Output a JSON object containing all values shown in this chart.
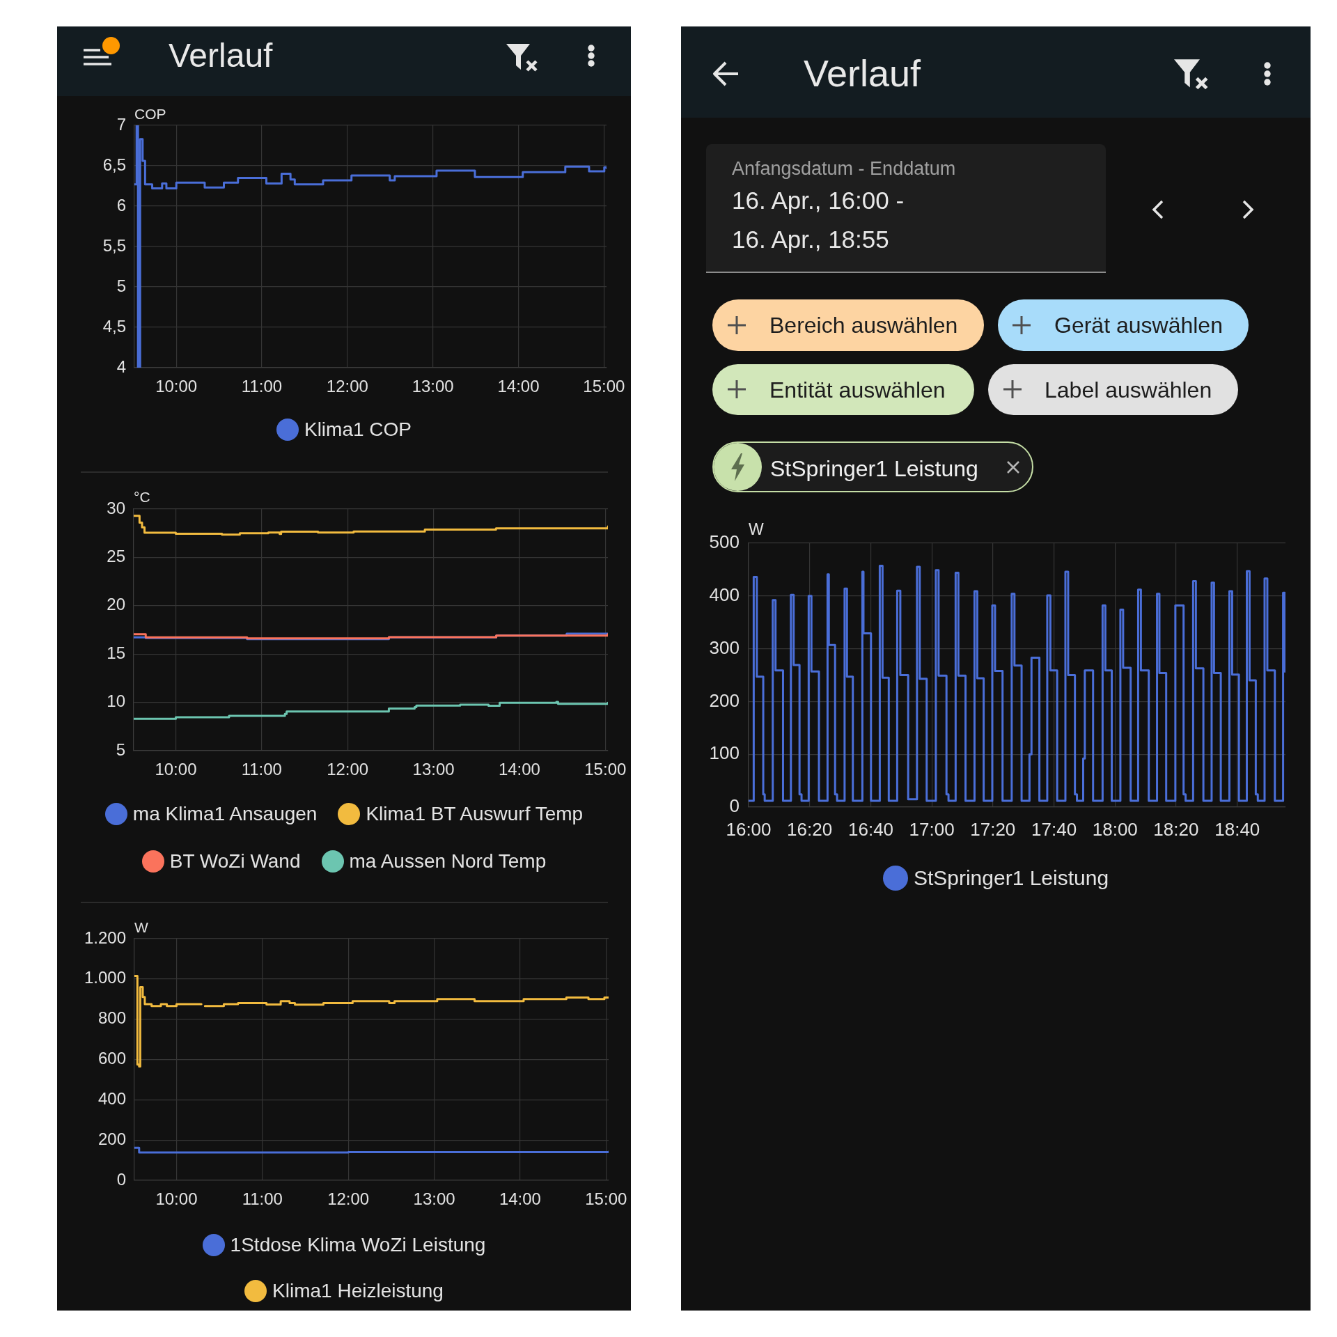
{
  "chart_data": [
    {
      "type": "other",
      "title": "Verlauf"
    },
    {
      "type": "step",
      "ylabel": "COP",
      "xlim": [
        9.51,
        15.03
      ],
      "xticks": [
        {
          "value": 10,
          "label": "10:00"
        },
        {
          "value": 11,
          "label": "11:00"
        },
        {
          "value": 12,
          "label": "12:00"
        },
        {
          "value": 13,
          "label": "13:00"
        },
        {
          "value": 14,
          "label": "14:00"
        },
        {
          "value": 15,
          "label": "15:00"
        }
      ],
      "ylim": [
        4,
        7
      ],
      "yticks": [
        4,
        {
          "value": 4.5,
          "label": "4,5"
        },
        5,
        {
          "value": 5.5,
          "label": "5,5"
        },
        6,
        {
          "value": 6.5,
          "label": "6,5"
        },
        7
      ],
      "grid": true,
      "legend": "bottom",
      "series": [
        {
          "name": "Klima1 COP",
          "color": "#4a6ed8",
          "x": [
            9.51,
            9.536,
            9.552,
            9.577,
            9.606,
            9.635,
            9.718,
            9.834,
            9.884,
            10.0,
            10.332,
            10.556,
            10.721,
            11.053,
            11.231,
            11.335,
            11.385,
            11.716,
            12.048,
            12.496,
            12.554,
            13.043,
            13.491,
            14.051,
            14.548,
            14.826,
            15.004,
            15.03
          ],
          "values": [
            6.27,
            7.0,
            4.0,
            6.83,
            6.56,
            6.27,
            6.22,
            6.28,
            6.22,
            6.29,
            6.23,
            6.29,
            6.35,
            6.28,
            6.4,
            6.33,
            6.27,
            6.32,
            6.38,
            6.32,
            6.37,
            6.44,
            6.36,
            6.42,
            6.49,
            6.43,
            6.48,
            6.47
          ]
        }
      ]
    },
    {
      "type": "step",
      "ylabel": "°C",
      "xlim": [
        9.51,
        15.03
      ],
      "xticks": [
        {
          "value": 10,
          "label": "10:00"
        },
        {
          "value": 11,
          "label": "11:00"
        },
        {
          "value": 12,
          "label": "12:00"
        },
        {
          "value": 13,
          "label": "13:00"
        },
        {
          "value": 14,
          "label": "14:00"
        },
        {
          "value": 15,
          "label": "15:00"
        }
      ],
      "ylim": [
        5,
        30
      ],
      "yticks": [
        5,
        10,
        15,
        20,
        25,
        30
      ],
      "grid": true,
      "legend": "bottom",
      "series": [
        {
          "name": "ma Klima1 Ansaugen",
          "color": "#4a6ed8",
          "x": [
            9.51,
            9.65,
            10.83,
            12.48,
            13.73,
            14.55,
            15.03
          ],
          "values": [
            16.73,
            16.65,
            16.55,
            16.72,
            16.9,
            17.1,
            17.0
          ]
        },
        {
          "name": "Klima1 BT Auswurf Temp",
          "color": "#f2bb3f",
          "x": [
            9.51,
            9.578,
            9.607,
            9.636,
            10.0,
            10.538,
            10.745,
            11.077,
            11.209,
            11.226,
            11.656,
            12.07,
            12.899,
            13.727,
            15.03
          ],
          "values": [
            29.3,
            28.6,
            28.1,
            27.55,
            27.45,
            27.35,
            27.5,
            27.57,
            27.43,
            27.65,
            27.57,
            27.68,
            27.87,
            28.0,
            28.2
          ]
        },
        {
          "name": "BT WoZi Wand",
          "color": "#fb735c",
          "x": [
            9.51,
            9.65,
            10.83,
            12.48,
            13.73,
            15.03
          ],
          "values": [
            17.05,
            16.72,
            16.62,
            16.75,
            16.9,
            17.05
          ]
        },
        {
          "name": "ma Aussen Nord Temp",
          "color": "#6cc5b0",
          "x": [
            9.51,
            10.0,
            10.62,
            11.27,
            11.29,
            11.66,
            12.48,
            12.78,
            12.8,
            13.31,
            13.64,
            13.77,
            14.43,
            14.45,
            15.03
          ],
          "values": [
            8.3,
            8.45,
            8.6,
            8.8,
            9.05,
            9.05,
            9.35,
            9.5,
            9.67,
            9.75,
            9.65,
            9.95,
            10.05,
            9.85,
            9.95
          ]
        }
      ]
    },
    {
      "type": "step",
      "ylabel": "W",
      "xlim": [
        9.51,
        15.03
      ],
      "xticks": [
        {
          "value": 10,
          "label": "10:00"
        },
        {
          "value": 11,
          "label": "11:00"
        },
        {
          "value": 12,
          "label": "12:00"
        },
        {
          "value": 13,
          "label": "13:00"
        },
        {
          "value": 14,
          "label": "14:00"
        },
        {
          "value": 15,
          "label": "15:00"
        }
      ],
      "ylim": [
        0,
        1200
      ],
      "yticks": [
        0,
        200,
        400,
        600,
        800,
        {
          "value": 1000,
          "label": "1.000"
        },
        {
          "value": 1200,
          "label": "1.200"
        }
      ],
      "grid": true,
      "legend": "bottom",
      "series": [
        {
          "name": "1Stdose Klima WoZi Leistung",
          "color": "#4a6ed8",
          "x": [
            9.51,
            9.565,
            12.0,
            15.03
          ],
          "values": [
            162,
            138,
            140,
            142
          ]
        },
        {
          "name": "Klima1 Heizleistung",
          "color": "#f2bb3f",
          "x": [
            9.51,
            9.545,
            9.565,
            9.578,
            9.607,
            9.631,
            9.71,
            9.818,
            9.888,
            10.0,
            10.29,
            10.3,
            10.331,
            10.551,
            10.716,
            11.048,
            11.213,
            11.317,
            11.379,
            11.71,
            12.05,
            12.476,
            12.538,
            13.035,
            13.47,
            14.041,
            14.538,
            14.795,
            14.981,
            15.03
          ],
          "values": [
            1015,
            575,
            565,
            960,
            910,
            875,
            865,
            875,
            865,
            875,
            875,
            null,
            865,
            875,
            880,
            873,
            890,
            880,
            872,
            880,
            890,
            880,
            890,
            900,
            890,
            900,
            908,
            900,
            908,
            908
          ]
        }
      ]
    },
    {
      "type": "other",
      "title": "Verlauf",
      "annotations": [
        "Anfangsdatum - Enddatum",
        "16. Apr., 16:00 -",
        "16. Apr., 18:55",
        "Bereich auswählen",
        "Gerät auswählen",
        "Entität auswählen",
        "Label auswählen",
        "StSpringer1 Leistung"
      ]
    },
    {
      "type": "step",
      "ylabel": "W",
      "xlim": [
        16,
        18.93
      ],
      "xticks": [
        {
          "value": 16,
          "label": "16:00"
        },
        {
          "value": 16.333,
          "label": "16:20"
        },
        {
          "value": 16.667,
          "label": "16:40"
        },
        {
          "value": 17,
          "label": "17:00"
        },
        {
          "value": 17.333,
          "label": "17:20"
        },
        {
          "value": 17.667,
          "label": "17:40"
        },
        {
          "value": 18,
          "label": "18:00"
        },
        {
          "value": 18.333,
          "label": "18:20"
        },
        {
          "value": 18.667,
          "label": "18:40"
        }
      ],
      "ylim": [
        0,
        500
      ],
      "yticks": [
        0,
        100,
        200,
        300,
        400,
        500
      ],
      "grid": true,
      "legend": "bottom",
      "series": [
        {
          "name": "StSpringer1 Leistung",
          "color": "#4a6ed8",
          "x": [
            16.0,
            16.028,
            16.045,
            16.08,
            16.088,
            16.132,
            16.147,
            16.188,
            16.231,
            16.246,
            16.278,
            16.289,
            16.328,
            16.343,
            16.384,
            16.431,
            16.438,
            16.472,
            16.483,
            16.524,
            16.537,
            16.569,
            16.621,
            16.627,
            16.668,
            16.716,
            16.731,
            16.765,
            16.811,
            16.828,
            16.871,
            16.919,
            16.934,
            16.972,
            17.022,
            17.037,
            17.08,
            17.091,
            17.13,
            17.145,
            17.184,
            17.233,
            17.248,
            17.283,
            17.33,
            17.345,
            17.386,
            17.436,
            17.451,
            17.49,
            17.533,
            17.544,
            17.587,
            17.63,
            17.647,
            17.684,
            17.729,
            17.744,
            17.781,
            17.792,
            17.826,
            17.835,
            17.88,
            17.932,
            17.947,
            17.982,
            18.029,
            18.044,
            18.085,
            18.126,
            18.141,
            18.184,
            18.229,
            18.242,
            18.279,
            18.329,
            18.374,
            18.385,
            18.426,
            18.441,
            18.482,
            18.527,
            18.54,
            18.577,
            18.624,
            18.639,
            18.676,
            18.719,
            18.734,
            18.768,
            18.779,
            18.816,
            18.831,
            18.872,
            18.917,
            18.926,
            18.93
          ],
          "values": [
            12,
            436,
            247,
            24,
            12,
            392,
            259,
            12,
            402,
            269,
            24,
            12,
            400,
            257,
            12,
            441,
            307,
            24,
            12,
            414,
            247,
            12,
            446,
            329,
            12,
            457,
            245,
            12,
            410,
            250,
            15,
            455,
            243,
            12,
            449,
            249,
            24,
            12,
            444,
            249,
            12,
            409,
            244,
            12,
            382,
            258,
            12,
            404,
            268,
            12,
            100,
            283,
            12,
            401,
            259,
            12,
            446,
            250,
            24,
            12,
            92,
            259,
            12,
            382,
            259,
            12,
            374,
            264,
            12,
            412,
            259,
            12,
            404,
            254,
            12,
            382,
            24,
            12,
            428,
            263,
            12,
            425,
            254,
            12,
            409,
            251,
            12,
            447,
            240,
            24,
            12,
            433,
            259,
            12,
            406,
            257,
            257
          ]
        }
      ]
    }
  ]
}
